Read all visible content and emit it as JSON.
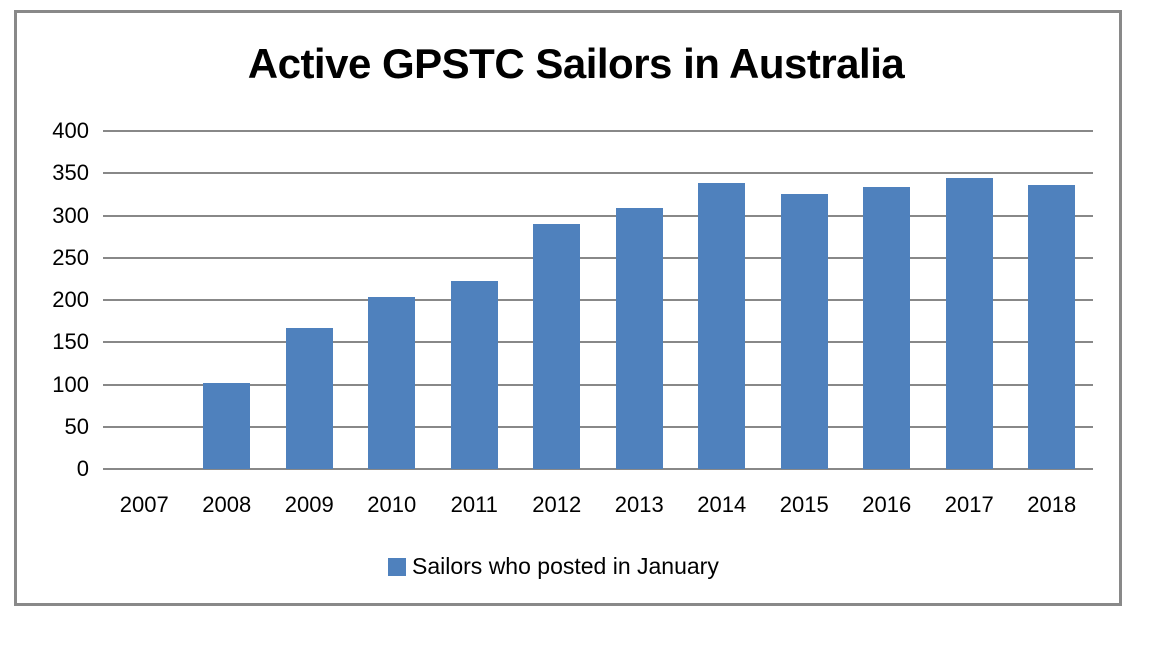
{
  "chart_data": {
    "type": "bar",
    "title": "Active GPSTC Sailors in Australia",
    "xlabel": "",
    "ylabel": "",
    "categories": [
      "2007",
      "2008",
      "2009",
      "2010",
      "2011",
      "2012",
      "2013",
      "2014",
      "2015",
      "2016",
      "2017",
      "2018"
    ],
    "series": [
      {
        "name": "Sailors who posted in January",
        "color": "#4f81bd",
        "values": [
          0,
          102,
          167,
          204,
          222,
          290,
          309,
          338,
          325,
          334,
          344,
          336
        ]
      }
    ],
    "ylim": [
      0,
      400
    ],
    "yticks": [
      "0",
      "50",
      "100",
      "150",
      "200",
      "250",
      "300",
      "350",
      "400"
    ],
    "grid": true,
    "legend_position": "bottom"
  },
  "colors": {
    "bar": "#4f81bd",
    "grid": "#888888",
    "frame": "#898989"
  }
}
